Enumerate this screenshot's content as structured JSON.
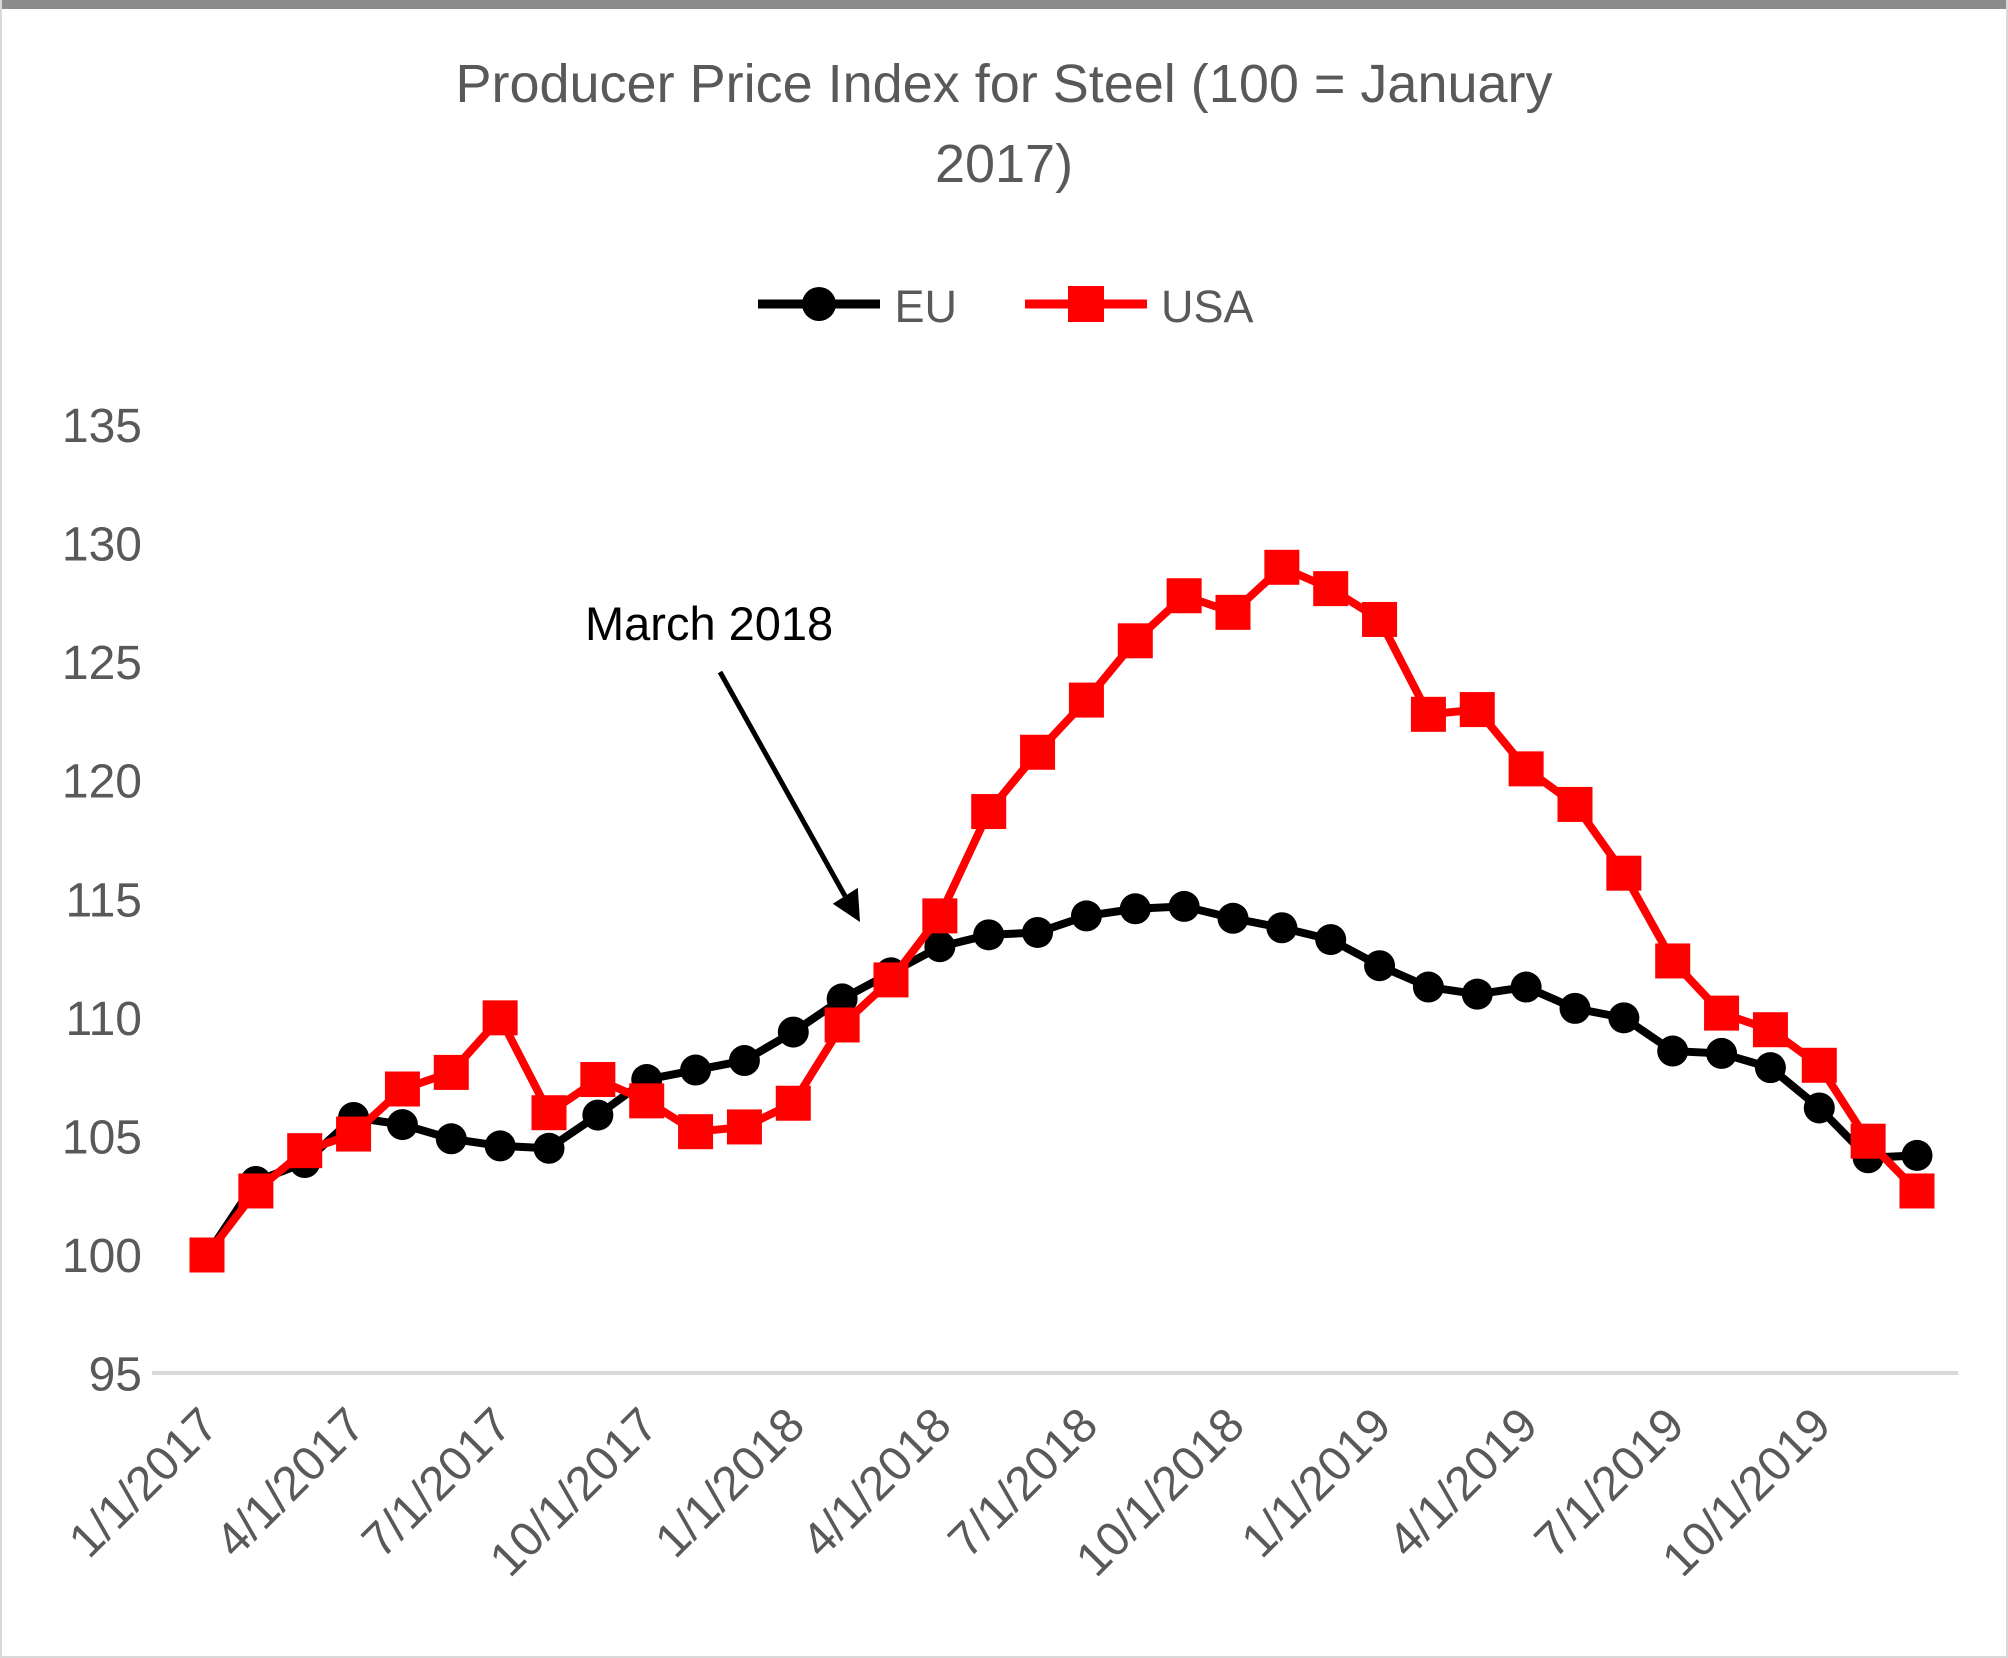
{
  "page": {
    "top_border_color": "#8c8c8c",
    "frame_border_color": "#d9d9d9",
    "background": "#ffffff",
    "text_gray": "#595959",
    "axis_line_color": "#d9d9d9"
  },
  "chart_data": {
    "type": "line",
    "title": "Producer Price Index for Steel (100 = January 2017)",
    "title_lines": [
      "Producer Price Index for Steel (100 = January",
      "2017)"
    ],
    "annotation": {
      "text": "March 2018"
    },
    "legend_position": "top",
    "grid": false,
    "ylim": [
      95,
      135
    ],
    "yticks": [
      95,
      100,
      105,
      110,
      115,
      120,
      125,
      130,
      135
    ],
    "x": [
      "1/1/2017",
      "2/1/2017",
      "3/1/2017",
      "4/1/2017",
      "5/1/2017",
      "6/1/2017",
      "7/1/2017",
      "8/1/2017",
      "9/1/2017",
      "10/1/2017",
      "11/1/2017",
      "12/1/2017",
      "1/1/2018",
      "2/1/2018",
      "3/1/2018",
      "4/1/2018",
      "5/1/2018",
      "6/1/2018",
      "7/1/2018",
      "8/1/2018",
      "9/1/2018",
      "10/1/2018",
      "11/1/2018",
      "12/1/2018",
      "1/1/2019",
      "2/1/2019",
      "3/1/2019",
      "4/1/2019",
      "5/1/2019",
      "6/1/2019",
      "7/1/2019",
      "8/1/2019",
      "9/1/2019",
      "10/1/2019",
      "11/1/2019",
      "12/1/2019"
    ],
    "x_tick_labels": [
      "1/1/2017",
      "4/1/2017",
      "7/1/2017",
      "10/1/2017",
      "1/1/2018",
      "4/1/2018",
      "7/1/2018",
      "10/1/2018",
      "1/1/2019",
      "4/1/2019",
      "7/1/2019",
      "10/1/2019"
    ],
    "x_tick_step": 3,
    "series": [
      {
        "name": "EU",
        "color": "#000000",
        "marker": "circle",
        "values": [
          100,
          103.1,
          103.9,
          105.8,
          105.5,
          104.9,
          104.6,
          104.5,
          105.9,
          107.4,
          107.8,
          108.2,
          109.4,
          110.8,
          111.9,
          113.0,
          113.5,
          113.6,
          114.3,
          114.6,
          114.7,
          114.2,
          113.8,
          113.3,
          112.2,
          111.3,
          111.0,
          111.3,
          110.4,
          110.0,
          108.6,
          108.5,
          107.9,
          106.2,
          104.1,
          104.2
        ]
      },
      {
        "name": "USA",
        "color": "#ff0000",
        "marker": "square",
        "values": [
          100,
          102.7,
          104.4,
          105.1,
          107.0,
          107.7,
          110.0,
          106.0,
          107.4,
          106.5,
          105.2,
          105.4,
          106.4,
          109.7,
          111.6,
          114.3,
          118.7,
          121.2,
          123.4,
          125.9,
          127.8,
          127.1,
          129.0,
          128.1,
          126.8,
          122.8,
          123.0,
          120.5,
          119.0,
          116.1,
          112.4,
          110.2,
          109.5,
          108.0,
          104.8,
          102.7
        ]
      }
    ]
  }
}
